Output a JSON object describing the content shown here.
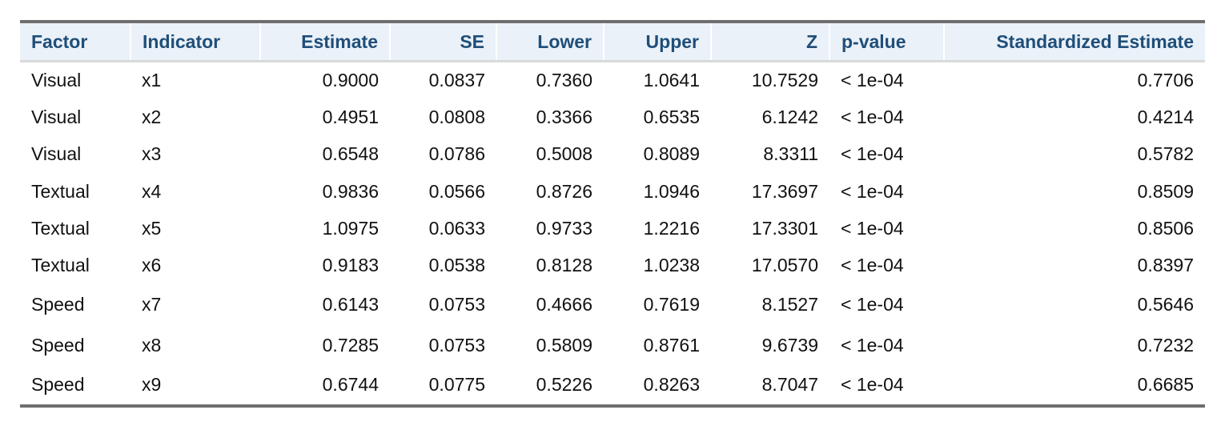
{
  "table": {
    "columns": [
      "Factor",
      "Indicator",
      "Estimate",
      "SE",
      "Lower",
      "Upper",
      "Z",
      "p-value",
      "Standardized Estimate"
    ],
    "rows": [
      [
        "Visual",
        "x1",
        "0.9000",
        "0.0837",
        "0.7360",
        "1.0641",
        "10.7529",
        "< 1e-04",
        "0.7706"
      ],
      [
        "Visual",
        "x2",
        "0.4951",
        "0.0808",
        "0.3366",
        "0.6535",
        "6.1242",
        "< 1e-04",
        "0.4214"
      ],
      [
        "Visual",
        "x3",
        "0.6548",
        "0.0786",
        "0.5008",
        "0.8089",
        "8.3311",
        "< 1e-04",
        "0.5782"
      ],
      [
        "Textual",
        "x4",
        "0.9836",
        "0.0566",
        "0.8726",
        "1.0946",
        "17.3697",
        "< 1e-04",
        "0.8509"
      ],
      [
        "Textual",
        "x5",
        "1.0975",
        "0.0633",
        "0.9733",
        "1.2216",
        "17.3301",
        "< 1e-04",
        "0.8506"
      ],
      [
        "Textual",
        "x6",
        "0.9183",
        "0.0538",
        "0.8128",
        "1.0238",
        "17.0570",
        "< 1e-04",
        "0.8397"
      ],
      [
        "Speed",
        "x7",
        "0.6143",
        "0.0753",
        "0.4666",
        "0.7619",
        "8.1527",
        "< 1e-04",
        "0.5646"
      ],
      [
        "Speed",
        "x8",
        "0.7285",
        "0.0753",
        "0.5809",
        "0.8761",
        "9.6739",
        "< 1e-04",
        "0.7232"
      ],
      [
        "Speed",
        "x9",
        "0.6744",
        "0.0775",
        "0.5226",
        "0.8263",
        "8.7047",
        "< 1e-04",
        "0.6685"
      ]
    ]
  },
  "colors": {
    "header_text": "#1f4e79",
    "header_bg": "#eaf1f8",
    "rule": "#6e6e6e"
  }
}
